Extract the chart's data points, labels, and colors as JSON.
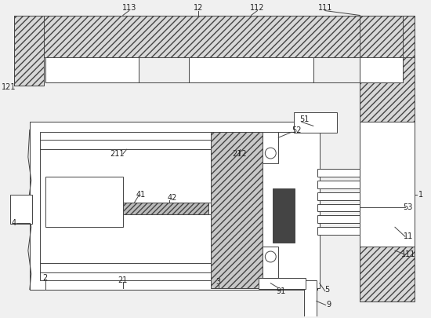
{
  "bg_color": "#f0f0f0",
  "line_color": "#444444",
  "hatch_fc": "#d8d8d8",
  "label_color": "#222222",
  "label_fs": 7.0,
  "lw": 0.7
}
